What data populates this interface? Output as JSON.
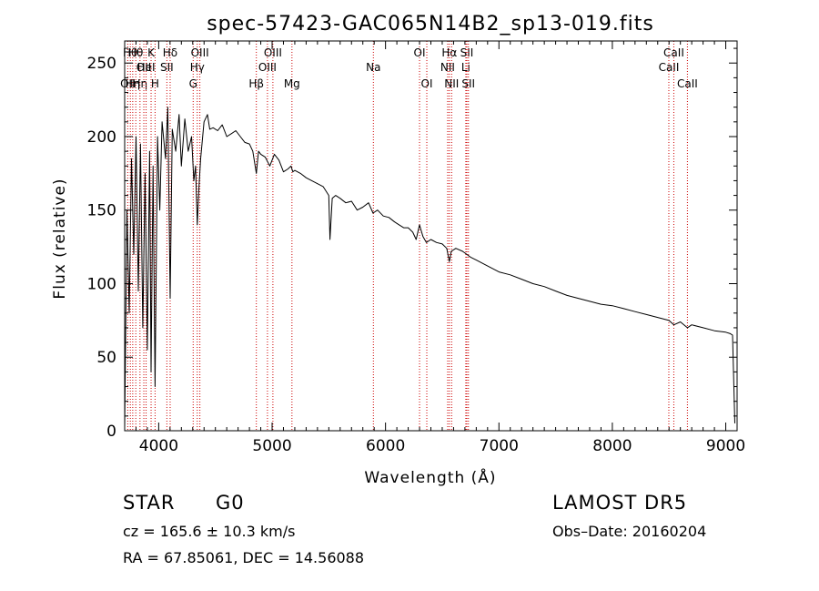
{
  "chart_data": {
    "type": "line",
    "title": "spec-57423-GAC065N14B2_sp13-019.fits",
    "xlabel": "Wavelength (Å)",
    "ylabel": "Flux (relative)",
    "xlim": [
      3700,
      9100
    ],
    "ylim": [
      0,
      265
    ],
    "x_ticks": [
      4000,
      5000,
      6000,
      7000,
      8000,
      9000
    ],
    "y_ticks": [
      0,
      50,
      100,
      150,
      200,
      250
    ],
    "grid": false,
    "series_color": "#000000",
    "line_marker_color": "#cc0000",
    "series": [
      {
        "x": [
          3700,
          3720,
          3740,
          3760,
          3780,
          3800,
          3820,
          3840,
          3860,
          3880,
          3900,
          3920,
          3933,
          3950,
          3968,
          3990,
          4010,
          4030,
          4060,
          4080,
          4101,
          4120,
          4150,
          4180,
          4200,
          4230,
          4260,
          4290,
          4310,
          4325,
          4340,
          4355,
          4370,
          4400,
          4430,
          4450,
          4480,
          4520,
          4560,
          4600,
          4640,
          4680,
          4720,
          4760,
          4800,
          4830,
          4861,
          4880,
          4900,
          4940,
          4980,
          5020,
          5060,
          5100,
          5140,
          5167,
          5183,
          5200,
          5250,
          5300,
          5350,
          5400,
          5450,
          5500,
          5510,
          5530,
          5560,
          5600,
          5650,
          5700,
          5750,
          5800,
          5850,
          5890,
          5930,
          5980,
          6030,
          6080,
          6120,
          6160,
          6200,
          6240,
          6270,
          6300,
          6330,
          6360,
          6400,
          6450,
          6500,
          6540,
          6563,
          6580,
          6620,
          6680,
          6750,
          6800,
          6900,
          7000,
          7100,
          7200,
          7300,
          7400,
          7500,
          7600,
          7700,
          7800,
          7900,
          8000,
          8100,
          8200,
          8300,
          8400,
          8500,
          8542,
          8600,
          8662,
          8700,
          8800,
          8900,
          9000,
          9040,
          9060,
          9080
        ],
        "y": [
          2,
          150,
          80,
          185,
          120,
          200,
          95,
          195,
          70,
          175,
          55,
          190,
          40,
          180,
          30,
          200,
          150,
          210,
          185,
          220,
          90,
          205,
          190,
          215,
          180,
          212,
          190,
          200,
          170,
          180,
          140,
          165,
          185,
          210,
          215,
          205,
          206,
          204,
          208,
          200,
          202,
          204,
          200,
          196,
          195,
          190,
          175,
          190,
          188,
          186,
          180,
          188,
          184,
          176,
          178,
          180,
          176,
          177,
          175,
          172,
          170,
          168,
          166,
          160,
          130,
          158,
          160,
          158,
          155,
          156,
          150,
          152,
          155,
          148,
          150,
          146,
          145,
          142,
          140,
          138,
          138,
          135,
          130,
          140,
          132,
          128,
          130,
          128,
          127,
          124,
          115,
          122,
          124,
          122,
          118,
          116,
          112,
          108,
          106,
          103,
          100,
          98,
          95,
          92,
          90,
          88,
          86,
          85,
          83,
          81,
          79,
          77,
          75,
          72,
          74,
          70,
          72,
          70,
          68,
          67,
          66,
          65,
          5
        ]
      }
    ],
    "line_ids": [
      {
        "wave": 3727,
        "label": "OII",
        "row": 3
      },
      {
        "wave": 3750,
        "label": "Hθ",
        "row": 1
      },
      {
        "wave": 3771,
        "label": "Hη",
        "row": 3
      },
      {
        "wave": 3798,
        "label": "Hθ",
        "row": 1
      },
      {
        "wave": 3835,
        "label": "Hη",
        "row": 3
      },
      {
        "wave": 3869,
        "label": "OII",
        "row": 2
      },
      {
        "wave": 3889,
        "label": "HeI",
        "row": 2
      },
      {
        "wave": 3933,
        "label": "K",
        "row": 1
      },
      {
        "wave": 3968,
        "label": "H",
        "row": 3
      },
      {
        "wave": 4072,
        "label": "SII",
        "row": 2
      },
      {
        "wave": 4101,
        "label": "Hδ",
        "row": 1
      },
      {
        "wave": 4304,
        "label": "G",
        "row": 3
      },
      {
        "wave": 4340,
        "label": "Hγ",
        "row": 2
      },
      {
        "wave": 4363,
        "label": "OIII",
        "row": 1
      },
      {
        "wave": 4861,
        "label": "Hβ",
        "row": 3
      },
      {
        "wave": 4959,
        "label": "OIII",
        "row": 2
      },
      {
        "wave": 5007,
        "label": "OIII",
        "row": 1
      },
      {
        "wave": 5175,
        "label": "Mg",
        "row": 3
      },
      {
        "wave": 5893,
        "label": "Na",
        "row": 2
      },
      {
        "wave": 6300,
        "label": "OI",
        "row": 1
      },
      {
        "wave": 6364,
        "label": "OI",
        "row": 3
      },
      {
        "wave": 6548,
        "label": "NII",
        "row": 2
      },
      {
        "wave": 6563,
        "label": "Hα",
        "row": 1
      },
      {
        "wave": 6583,
        "label": "NII",
        "row": 3
      },
      {
        "wave": 6708,
        "label": "Li",
        "row": 2
      },
      {
        "wave": 6717,
        "label": "SII",
        "row": 1
      },
      {
        "wave": 6731,
        "label": "SII",
        "row": 3
      },
      {
        "wave": 8498,
        "label": "CaII",
        "row": 2
      },
      {
        "wave": 8542,
        "label": "CaII",
        "row": 1
      },
      {
        "wave": 8662,
        "label": "CaII",
        "row": 3
      }
    ]
  },
  "info": {
    "class": "STAR",
    "subclass": "G0",
    "survey": "LAMOST  DR5",
    "cz": "cz = 165.6 ± 10.3 km/s",
    "obs_date": "Obs–Date: 20160204",
    "coords": "RA =  67.85061, DEC =  14.56088"
  }
}
